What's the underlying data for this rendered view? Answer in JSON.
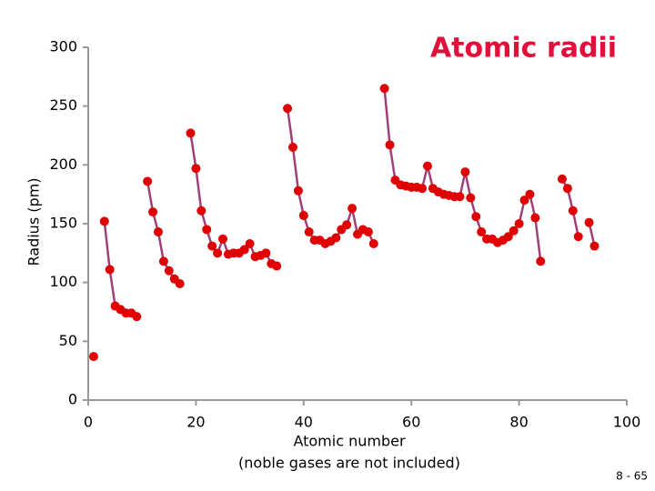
{
  "chart_data": {
    "type": "line",
    "title": "Atomic radii",
    "xlabel": "Atomic number",
    "xlabel_note": "(noble gases are not included)",
    "ylabel": "Radius (pm)",
    "x": [
      1,
      2,
      3,
      4,
      5,
      6,
      7,
      8,
      9,
      10,
      11,
      12,
      13,
      14,
      15,
      16,
      17,
      18,
      19,
      20,
      21,
      22,
      23,
      24,
      25,
      26,
      27,
      28,
      29,
      30,
      31,
      32,
      33,
      34,
      35,
      36,
      37,
      38,
      39,
      40,
      41,
      42,
      43,
      44,
      45,
      46,
      47,
      48,
      49,
      50,
      51,
      52,
      53,
      54,
      55,
      56,
      57,
      58,
      59,
      60,
      61,
      62,
      63,
      64,
      65,
      66,
      67,
      68,
      69,
      70,
      71,
      72,
      73,
      74,
      75,
      76,
      77,
      78,
      79,
      80,
      81,
      82,
      83,
      84,
      85,
      86,
      87,
      88,
      89,
      90,
      91,
      92,
      93,
      94
    ],
    "series": [
      {
        "name": "Radius",
        "color": "#e00000",
        "line_color": "#a0407a",
        "values": [
          37,
          null,
          152,
          111,
          80,
          77,
          74,
          74,
          71,
          null,
          186,
          160,
          143,
          118,
          110,
          103,
          99,
          null,
          227,
          197,
          161,
          145,
          131,
          125,
          137,
          124,
          125,
          125,
          128,
          133,
          122,
          123,
          125,
          116,
          114,
          null,
          248,
          215,
          178,
          157,
          143,
          136,
          136,
          133,
          135,
          138,
          145,
          149,
          163,
          141,
          145,
          143,
          133,
          null,
          265,
          217,
          187,
          183,
          182,
          181,
          181,
          180,
          199,
          180,
          177,
          175,
          174,
          173,
          173,
          194,
          172,
          156,
          143,
          137,
          137,
          134,
          136,
          139,
          144,
          150,
          170,
          175,
          155,
          118,
          null,
          null,
          null,
          188,
          180,
          161,
          139,
          null,
          151,
          131
        ]
      }
    ],
    "xlim": [
      0,
      100
    ],
    "xticks": [
      0,
      20,
      40,
      60,
      80,
      100
    ],
    "ylim": [
      0,
      300
    ],
    "yticks": [
      0,
      50,
      100,
      150,
      200,
      250,
      300
    ]
  },
  "page_number": "8 - 65"
}
